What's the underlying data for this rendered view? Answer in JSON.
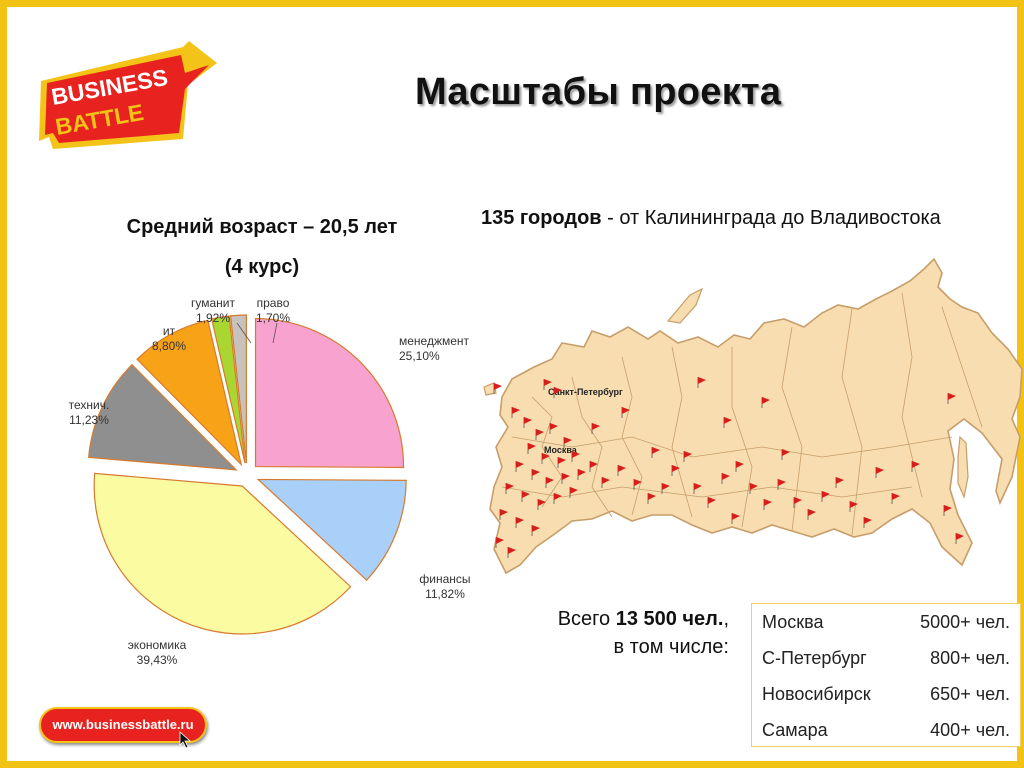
{
  "logo": {
    "line1": "BUSINESS",
    "line2": "BATTLE",
    "colors": {
      "red": "#e8231f",
      "yellow": "#f4c318"
    }
  },
  "title": "Масштабы проекта",
  "age": {
    "line1": "Средний возраст – 20,5 лет",
    "line2": "(4 курс)"
  },
  "cities": {
    "bold": "135 городов",
    "rest": " - от Калининграда до Владивостока"
  },
  "chart_data": {
    "type": "pie",
    "slices": [
      {
        "label": "менеджмент",
        "value_label": "25,10%",
        "value": 25.1,
        "color": "#f8a3cf"
      },
      {
        "label": "финансы",
        "value_label": "11,82%",
        "value": 11.82,
        "color": "#a8d0f8"
      },
      {
        "label": "экономика",
        "value_label": "39,43%",
        "value": 39.43,
        "color": "#fbfba2"
      },
      {
        "label": "технич.",
        "value_label": "11,23%",
        "value": 11.23,
        "color": "#8f8f8f"
      },
      {
        "label": "ит",
        "value_label": "8,80%",
        "value": 8.8,
        "color": "#f7a217"
      },
      {
        "label": "гуманит",
        "value_label": "1,92%",
        "value": 1.92,
        "color": "#a9d630"
      },
      {
        "label": "право",
        "value_label": "1,70%",
        "value": 1.7,
        "color": "#c8c2bd"
      }
    ]
  },
  "map": {
    "labels": {
      "spb": "Санкт-Петербург",
      "moscow": "Москва"
    },
    "colors": {
      "land": "#f7ddb0",
      "border": "#c79e6a",
      "flag": "#d81d1d"
    }
  },
  "total": {
    "prefix": "Всего ",
    "bold": "13 500 чел.",
    "suffix": ",",
    "line2": "в том числе:"
  },
  "city_table": [
    {
      "city": "Москва",
      "count": "5000+ чел."
    },
    {
      "city": "С-Петербург",
      "count": "800+ чел."
    },
    {
      "city": "Новосибирск",
      "count": "650+ чел."
    },
    {
      "city": "Самара",
      "count": "400+ чел."
    }
  ],
  "url": "www.businessbattle.ru"
}
